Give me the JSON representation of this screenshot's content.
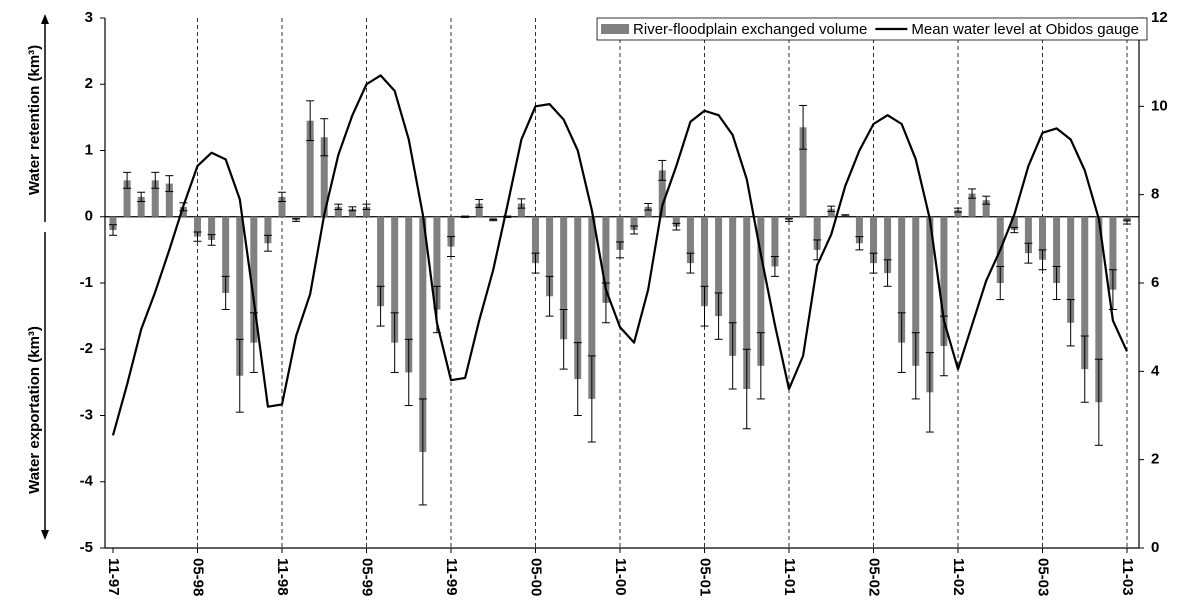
{
  "chart_data": {
    "type": "bar_line",
    "y_label_top": "Water retention (km³)",
    "y_label_bottom": "Water exportation (km³)",
    "categories": [
      "11-97",
      null,
      null,
      null,
      null,
      null,
      "05-98",
      null,
      null,
      null,
      null,
      null,
      "11-98",
      null,
      null,
      null,
      null,
      null,
      "05-99",
      null,
      null,
      null,
      null,
      null,
      "11-99",
      null,
      null,
      null,
      null,
      null,
      "05-00",
      null,
      null,
      null,
      null,
      null,
      "11-00",
      null,
      null,
      null,
      null,
      null,
      "05-01",
      null,
      null,
      null,
      null,
      null,
      "11-01",
      null,
      null,
      null,
      null,
      null,
      "05-02",
      null,
      null,
      null,
      null,
      null,
      "11-02",
      null,
      null,
      null,
      null,
      null,
      "05-03",
      null,
      null,
      null,
      null,
      null,
      "11-03"
    ],
    "series": [
      {
        "name": "River-floodplain exchanged volume",
        "type": "bar",
        "color": "#808080",
        "values": [
          -0.2,
          0.55,
          0.3,
          0.55,
          0.5,
          0.15,
          -0.3,
          -0.35,
          -1.15,
          -2.4,
          -1.9,
          -0.4,
          0.3,
          -0.05,
          1.45,
          1.2,
          0.15,
          0.12,
          0.15,
          -1.35,
          -1.9,
          -2.35,
          -3.55,
          -1.4,
          -0.45,
          0,
          0.2,
          -0.05,
          0,
          0.2,
          -0.7,
          -1.2,
          -1.85,
          -2.45,
          -2.75,
          -1.3,
          -0.5,
          -0.2,
          0.15,
          0.7,
          -0.15,
          -0.7,
          -1.35,
          -1.5,
          -2.1,
          -2.6,
          -2.25,
          -0.75,
          -0.05,
          1.35,
          -0.5,
          0.12,
          0.02,
          -0.4,
          -0.7,
          -0.85,
          -1.9,
          -2.25,
          -2.65,
          -1.95,
          0.1,
          0.35,
          0.25,
          -1.0,
          -0.2,
          -0.55,
          -0.65,
          -1.0,
          -1.6,
          -2.3,
          -2.8,
          -1.1,
          -0.08
        ],
        "errors": [
          0.08,
          0.12,
          0.07,
          0.12,
          0.12,
          0.06,
          0.07,
          0.08,
          0.25,
          0.55,
          0.45,
          0.12,
          0.07,
          0.02,
          0.3,
          0.28,
          0.04,
          0.03,
          0.04,
          0.3,
          0.45,
          0.5,
          0.8,
          0.35,
          0.15,
          0.01,
          0.06,
          0.01,
          0.01,
          0.07,
          0.15,
          0.3,
          0.45,
          0.55,
          0.65,
          0.3,
          0.12,
          0.06,
          0.05,
          0.15,
          0.05,
          0.15,
          0.3,
          0.35,
          0.5,
          0.6,
          0.5,
          0.15,
          0.02,
          0.33,
          0.15,
          0.04,
          0.01,
          0.1,
          0.15,
          0.2,
          0.45,
          0.5,
          0.6,
          0.45,
          0.03,
          0.07,
          0.06,
          0.25,
          0.04,
          0.15,
          0.15,
          0.25,
          0.35,
          0.5,
          0.65,
          0.3,
          0.03
        ]
      },
      {
        "name": "Mean water level at Obidos gauge",
        "type": "line",
        "axis": "y2",
        "color": "#000000",
        "values": [
          2.55,
          3.7,
          4.95,
          5.8,
          6.75,
          7.75,
          8.65,
          8.95,
          8.8,
          7.9,
          5.6,
          3.2,
          3.25,
          4.8,
          5.75,
          7.55,
          8.9,
          9.8,
          10.5,
          10.7,
          10.35,
          9.25,
          7.55,
          5.1,
          3.8,
          3.85,
          5.15,
          6.3,
          7.75,
          9.25,
          10.0,
          10.05,
          9.7,
          9.0,
          7.65,
          5.85,
          5.0,
          4.65,
          5.85,
          7.75,
          8.65,
          9.65,
          9.9,
          9.8,
          9.35,
          8.35,
          6.65,
          5.05,
          3.6,
          4.35,
          6.4,
          7.1,
          8.2,
          9.0,
          9.6,
          9.8,
          9.6,
          8.8,
          7.45,
          5.15,
          4.05,
          5.05,
          6.05,
          6.75,
          7.55,
          8.65,
          9.4,
          9.5,
          9.25,
          8.55,
          7.45,
          5.15,
          4.45
        ]
      }
    ],
    "ylim": [
      -5,
      3
    ],
    "yticks": [
      3,
      2,
      1,
      0,
      -1,
      -2,
      -3,
      -4,
      -5
    ],
    "y2lim": [
      0,
      12
    ],
    "y2ticks": [
      0,
      2,
      4,
      6,
      8,
      10,
      12
    ],
    "grid": "dashed-vertical",
    "legend": "top-right"
  }
}
